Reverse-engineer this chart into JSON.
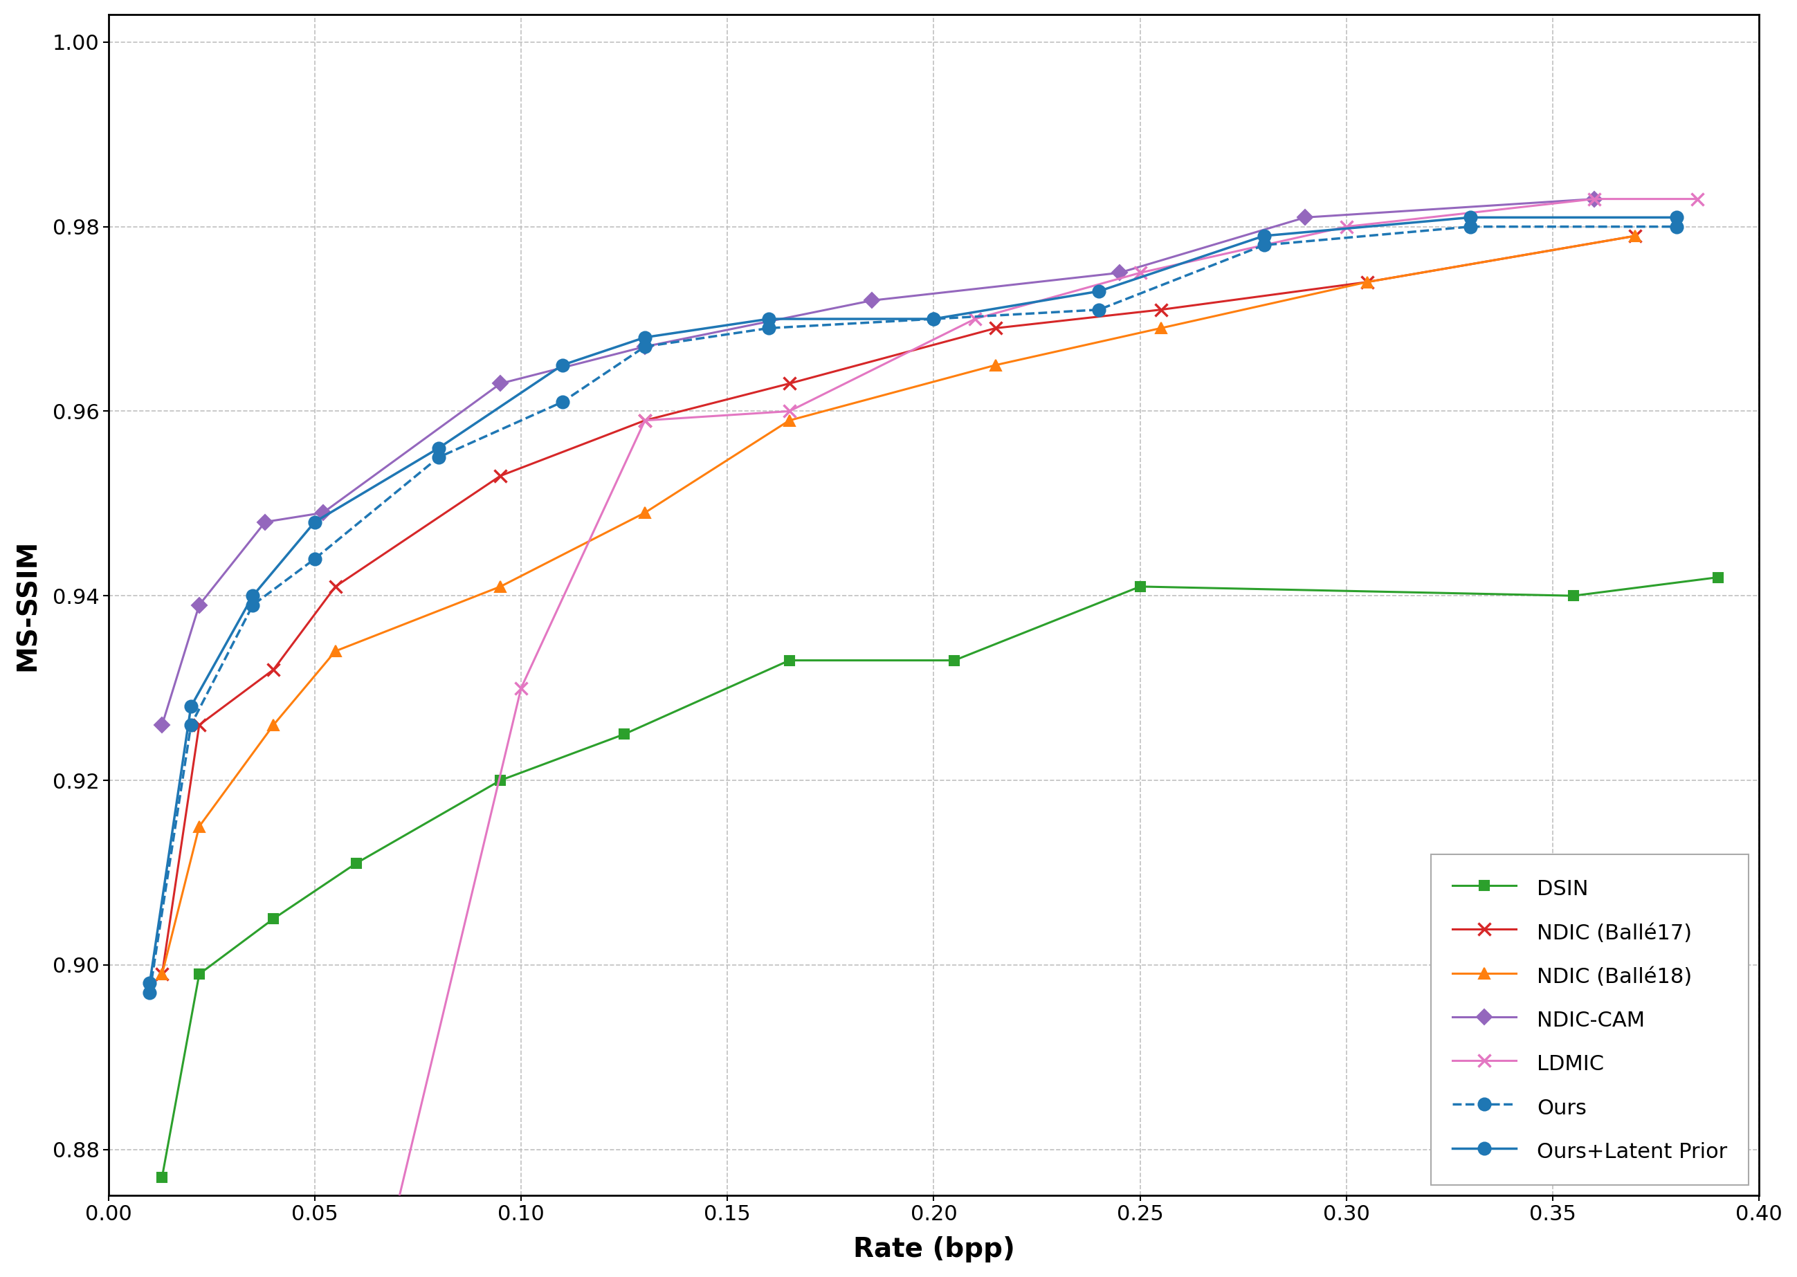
{
  "xlabel": "Rate (bpp)",
  "ylabel": "MS-SSIM",
  "xlim": [
    0.0,
    0.4
  ],
  "ylim": [
    0.875,
    1.003
  ],
  "yticks": [
    0.88,
    0.9,
    0.92,
    0.94,
    0.96,
    0.98,
    1.0
  ],
  "xticks": [
    0.0,
    0.05,
    0.1,
    0.15,
    0.2,
    0.25,
    0.3,
    0.35,
    0.4
  ],
  "background_color": "#ffffff",
  "grid_color": "#c0c0c0",
  "series": [
    {
      "label": "DSIN",
      "color": "#2ca02c",
      "marker": "s",
      "linestyle": "-",
      "linewidth": 2.2,
      "markersize": 10,
      "markeredgewidth": 1.5,
      "x": [
        0.013,
        0.022,
        0.04,
        0.06,
        0.095,
        0.125,
        0.165,
        0.205,
        0.25,
        0.355,
        0.39
      ],
      "y": [
        0.877,
        0.899,
        0.905,
        0.911,
        0.92,
        0.925,
        0.933,
        0.933,
        0.941,
        0.94,
        0.942
      ]
    },
    {
      "label": "NDIC (Ballé17)",
      "color": "#d62728",
      "marker": "x",
      "linestyle": "-",
      "linewidth": 2.2,
      "markersize": 13,
      "markeredgewidth": 2.5,
      "x": [
        0.013,
        0.022,
        0.04,
        0.055,
        0.095,
        0.13,
        0.165,
        0.215,
        0.255,
        0.305,
        0.37
      ],
      "y": [
        0.899,
        0.926,
        0.932,
        0.941,
        0.953,
        0.959,
        0.963,
        0.969,
        0.971,
        0.974,
        0.979
      ]
    },
    {
      "label": "NDIC (Ballé18)",
      "color": "#ff7f0e",
      "marker": "^",
      "linestyle": "-",
      "linewidth": 2.2,
      "markersize": 12,
      "markeredgewidth": 1.5,
      "x": [
        0.013,
        0.022,
        0.04,
        0.055,
        0.095,
        0.13,
        0.165,
        0.215,
        0.255,
        0.305,
        0.37
      ],
      "y": [
        0.899,
        0.915,
        0.926,
        0.934,
        0.941,
        0.949,
        0.959,
        0.965,
        0.969,
        0.974,
        0.979
      ]
    },
    {
      "label": "NDIC-CAM",
      "color": "#9467bd",
      "marker": "D",
      "linestyle": "-",
      "linewidth": 2.2,
      "markersize": 11,
      "markeredgewidth": 1.5,
      "x": [
        0.013,
        0.022,
        0.038,
        0.052,
        0.095,
        0.13,
        0.185,
        0.245,
        0.29,
        0.36
      ],
      "y": [
        0.926,
        0.939,
        0.948,
        0.949,
        0.963,
        0.967,
        0.972,
        0.975,
        0.981,
        0.983
      ]
    },
    {
      "label": "LDMIC",
      "color": "#e377c2",
      "marker": "x",
      "linestyle": "-",
      "linewidth": 2.2,
      "markersize": 13,
      "markeredgewidth": 2.5,
      "x": [
        0.07,
        0.1,
        0.13,
        0.165,
        0.21,
        0.25,
        0.3,
        0.36,
        0.385
      ],
      "y": [
        0.874,
        0.93,
        0.959,
        0.96,
        0.97,
        0.975,
        0.98,
        0.983,
        0.983
      ]
    },
    {
      "label": "Ours",
      "color": "#1f77b4",
      "marker": "o",
      "linestyle": "--",
      "linewidth": 2.5,
      "markersize": 13,
      "markeredgewidth": 1.5,
      "x": [
        0.01,
        0.02,
        0.035,
        0.05,
        0.08,
        0.11,
        0.13,
        0.16,
        0.2,
        0.24,
        0.28,
        0.33,
        0.38
      ],
      "y": [
        0.897,
        0.926,
        0.939,
        0.944,
        0.955,
        0.961,
        0.967,
        0.969,
        0.97,
        0.971,
        0.978,
        0.98,
        0.98
      ]
    },
    {
      "label": "Ours+Latent Prior",
      "color": "#1f77b4",
      "marker": "o",
      "linestyle": "-",
      "linewidth": 2.5,
      "markersize": 13,
      "markeredgewidth": 1.5,
      "x": [
        0.01,
        0.02,
        0.035,
        0.05,
        0.08,
        0.11,
        0.13,
        0.16,
        0.2,
        0.24,
        0.28,
        0.33,
        0.38
      ],
      "y": [
        0.898,
        0.928,
        0.94,
        0.948,
        0.956,
        0.965,
        0.968,
        0.97,
        0.97,
        0.973,
        0.979,
        0.981,
        0.981
      ]
    }
  ]
}
